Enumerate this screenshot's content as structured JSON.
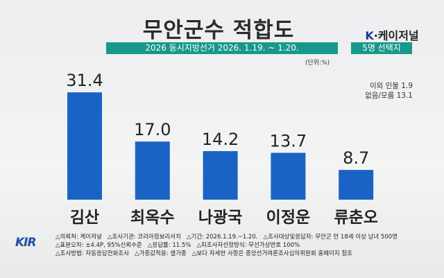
{
  "header": {
    "title": "무안군수 적합도",
    "subtitle": "2026 동시지방선거 2026. 1.19. ~ 1.20.",
    "brand_k": "K",
    "brand_rest": "·케이저널",
    "choice_label": "5명 선택지",
    "unit": "(단위:%)"
  },
  "others": [
    "이외 인물 1.9",
    "없음/모름 13.1"
  ],
  "chart_data": {
    "type": "bar",
    "title": "무안군수 적합도",
    "categories": [
      "김산",
      "최옥수",
      "나광국",
      "이정운",
      "류춘오"
    ],
    "values": [
      31.4,
      17.0,
      14.2,
      13.7,
      8.7
    ],
    "value_labels": [
      "31.4",
      "17.0",
      "14.2",
      "13.7",
      "8.7"
    ],
    "ylabel": "(단위:%)",
    "ylim": [
      0,
      32
    ],
    "grid": false,
    "bar_color": "#1a63c4"
  },
  "footer": {
    "logo": "KIR",
    "lines": [
      "△의뢰처: 케이저널   △조사기관: 코리아정보리서치   △기간: 2026.1.19.~1.20.   △조사대상및응답자: 무안군 만 18세 이상 남녀 500명",
      "△표본오차: ±4.4P, 95%신뢰수준   △응답률: 11.5%   △피조사자선정방식: 무선가상번호 100%",
      "△조사방법: 자동응답전화조사   △가중값적용: 셀가중   △보다 자세한 사항은 중앙선거여론조사심의위원회 홈페이지 참조"
    ]
  }
}
